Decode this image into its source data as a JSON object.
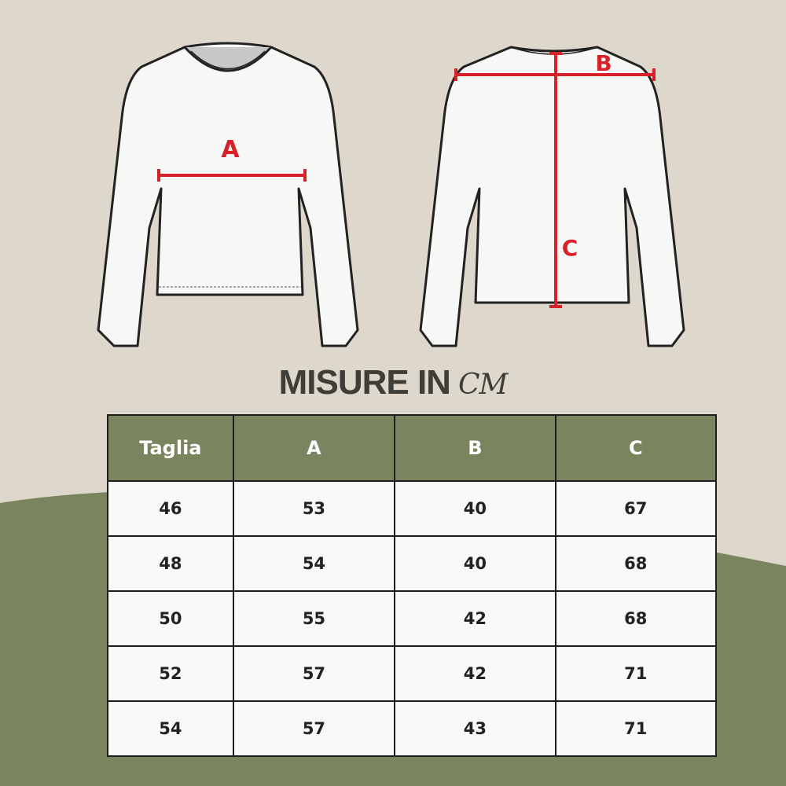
{
  "diagram": {
    "labels": {
      "chest": "A",
      "shoulder": "B",
      "length": "C"
    },
    "colors": {
      "background": "#ddd7cc",
      "accent_green": "#7a8560",
      "measure_red": "#d8222a"
    }
  },
  "title": {
    "text": "MISURE IN",
    "unit": "CM"
  },
  "table": {
    "headers": [
      "Taglia",
      "A",
      "B",
      "C"
    ],
    "rows": [
      [
        "46",
        "53",
        "40",
        "67"
      ],
      [
        "48",
        "54",
        "40",
        "68"
      ],
      [
        "50",
        "55",
        "42",
        "68"
      ],
      [
        "52",
        "57",
        "42",
        "71"
      ],
      [
        "54",
        "57",
        "43",
        "71"
      ]
    ]
  }
}
